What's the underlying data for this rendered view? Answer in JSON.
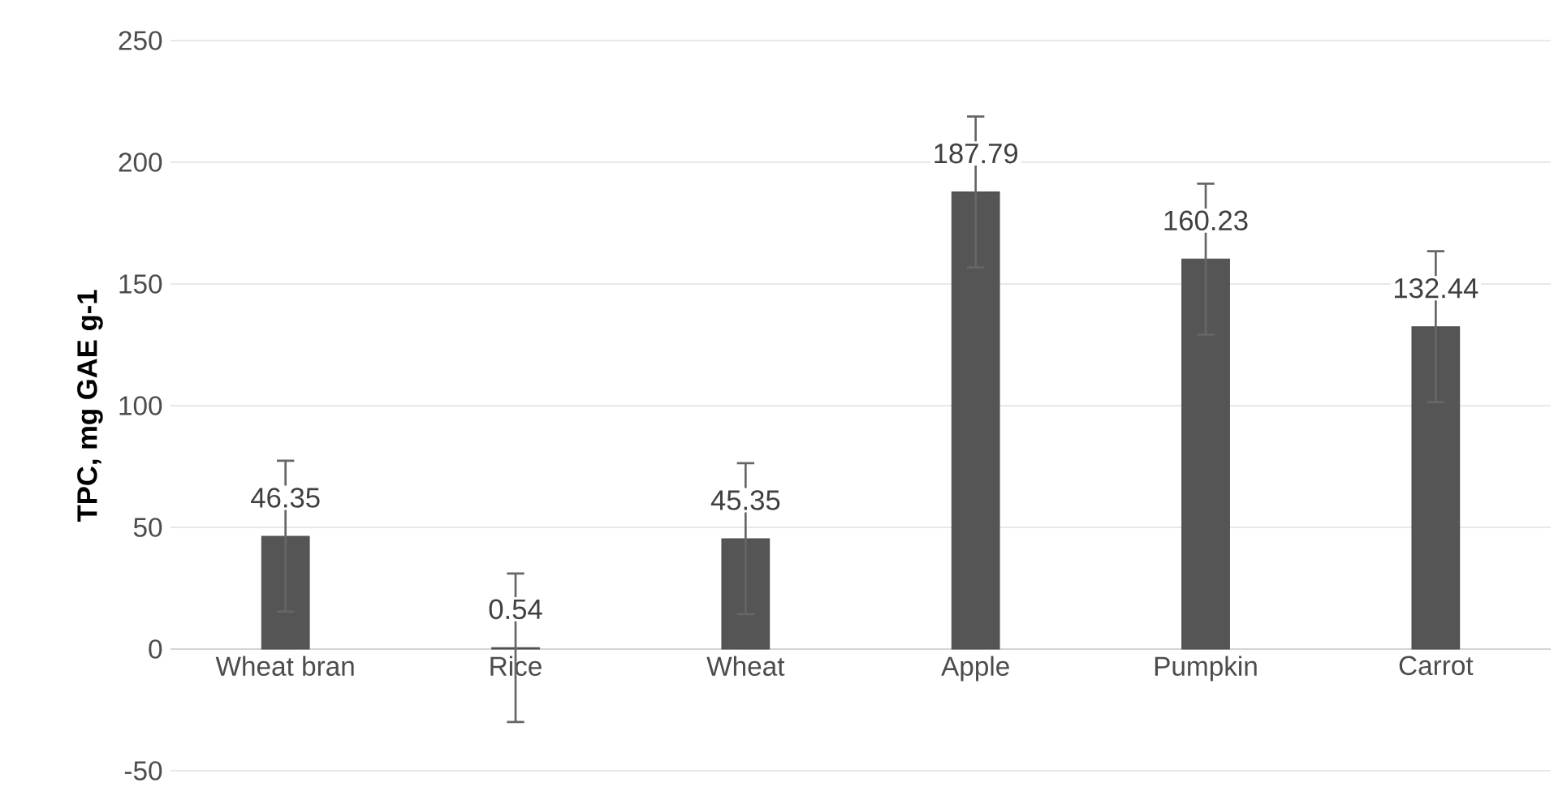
{
  "chart_data": {
    "type": "bar",
    "ylabel": "TPC, mg GAE g-1",
    "categories": [
      "Wheat bran",
      "Rice",
      "Wheat",
      "Apple",
      "Pumpkin",
      "Carrot"
    ],
    "values": [
      46.35,
      0.54,
      45.35,
      187.79,
      160.23,
      132.44
    ],
    "errors": [
      31,
      30.5,
      31,
      31,
      31,
      31
    ],
    "color": "#555555",
    "ylim": [
      -50,
      250
    ],
    "yticks": [
      -50,
      0,
      50,
      100,
      150,
      200,
      250
    ],
    "grid": "y",
    "data_labels": true
  }
}
